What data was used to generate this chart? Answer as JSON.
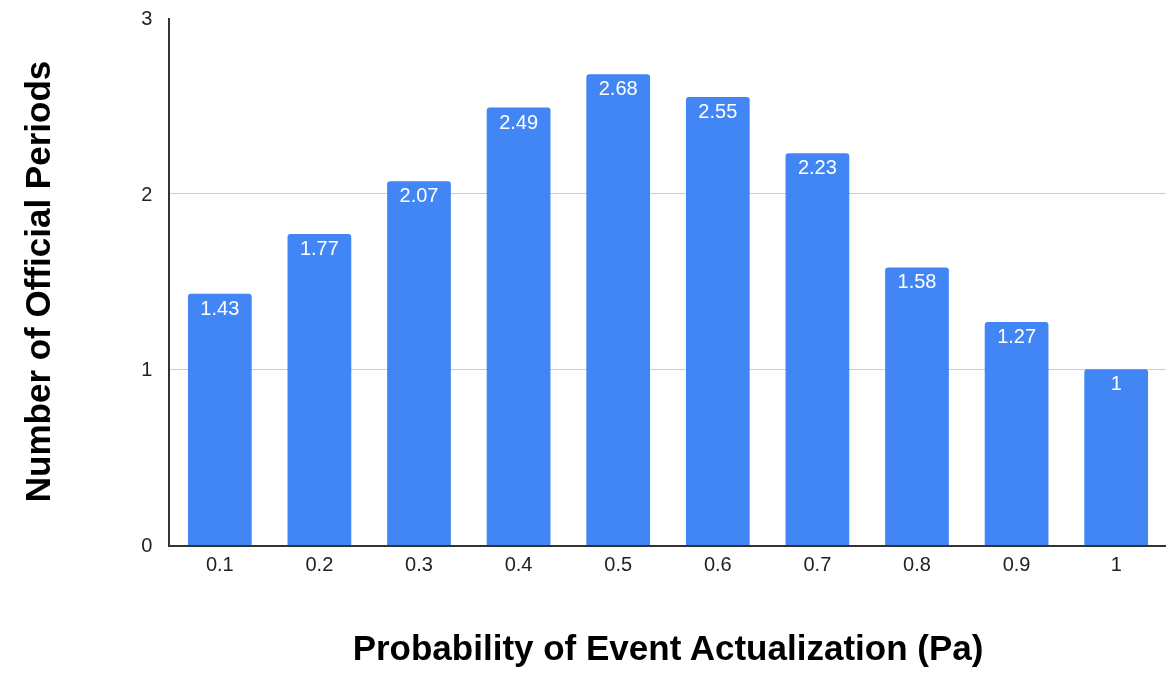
{
  "chart_data": {
    "type": "bar",
    "xlabel": "Probability of Event Actualization (Pa)",
    "ylabel": "Number of Official Periods",
    "categories": [
      "0.1",
      "0.2",
      "0.3",
      "0.4",
      "0.5",
      "0.6",
      "0.7",
      "0.8",
      "0.9",
      "1"
    ],
    "values": [
      1.43,
      1.77,
      2.07,
      2.49,
      2.68,
      2.55,
      2.23,
      1.58,
      1.27,
      1
    ],
    "color": "#4285f4",
    "ylim": [
      0,
      3
    ],
    "yticks": [
      0,
      1,
      2,
      3
    ],
    "grid": "y",
    "data_labels": true,
    "legend": false
  }
}
